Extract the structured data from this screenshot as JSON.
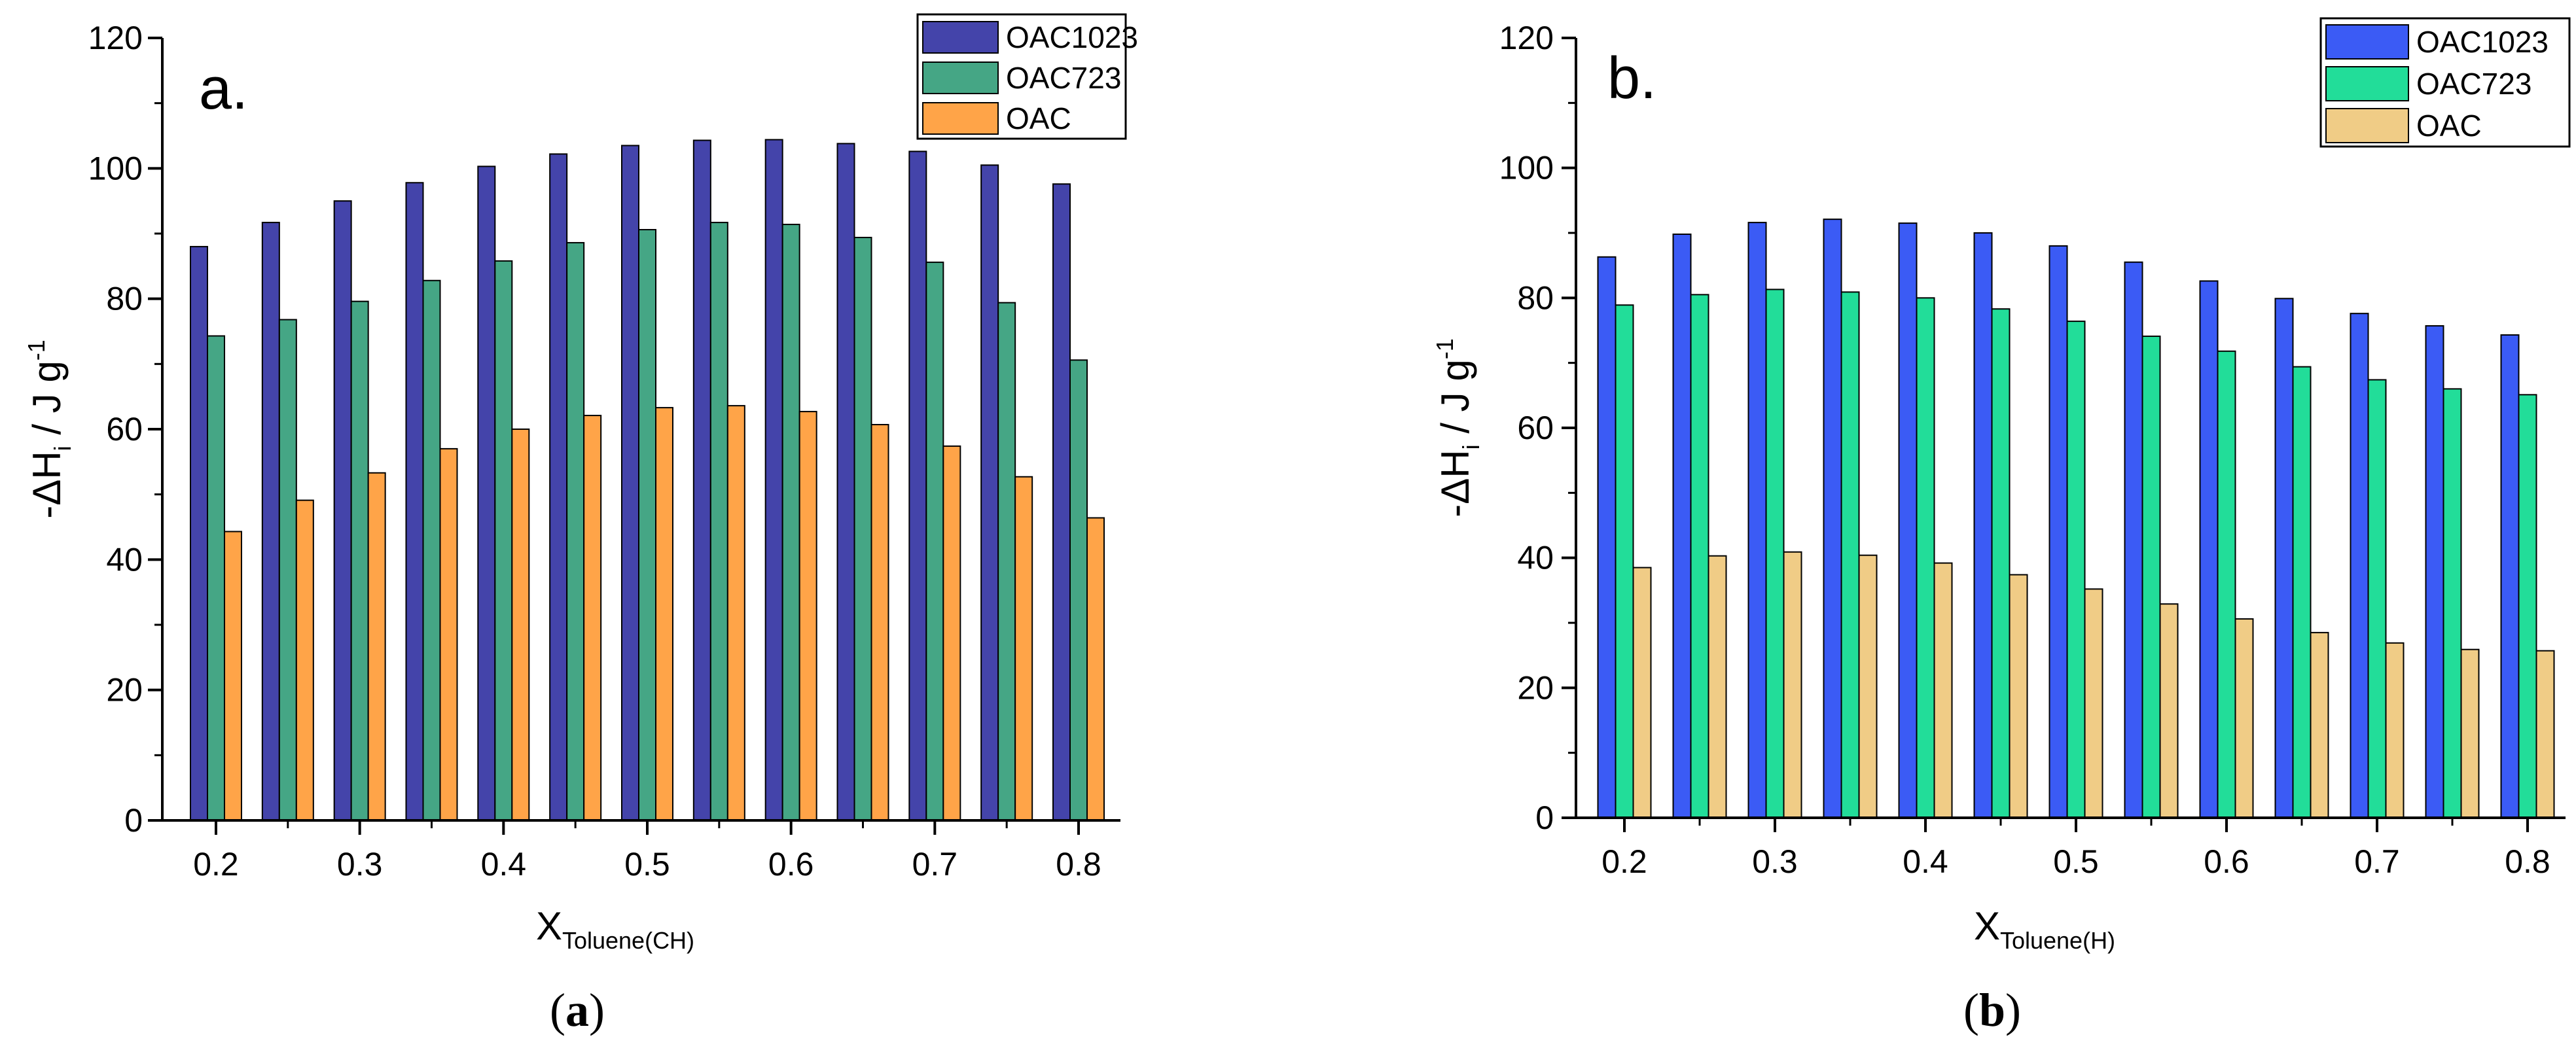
{
  "chart_data": [
    {
      "type": "bar",
      "panel_label": "a.",
      "caption": {
        "open": "(",
        "letter": "a",
        "close": ")"
      },
      "categories": [
        "0.2",
        "0.25",
        "0.3",
        "0.35",
        "0.4",
        "0.45",
        "0.5",
        "0.55",
        "0.6",
        "0.65",
        "0.7",
        "0.75",
        "0.8"
      ],
      "x_ticks": [
        "0.2",
        "0.3",
        "0.4",
        "0.5",
        "0.6",
        "0.7",
        "0.8"
      ],
      "series": [
        {
          "name": "OAC1023",
          "color": "#4444aa",
          "values": [
            88,
            91.7,
            95,
            97.8,
            100.3,
            102.2,
            103.5,
            104.3,
            104.4,
            103.8,
            102.6,
            100.5,
            97.6
          ]
        },
        {
          "name": "OAC723",
          "color": "#45a685",
          "values": [
            74.3,
            76.8,
            79.6,
            82.8,
            85.8,
            88.6,
            90.6,
            91.7,
            91.4,
            89.4,
            85.6,
            79.4,
            70.6
          ]
        },
        {
          "name": "OAC",
          "color": "#ffa448",
          "values": [
            44.3,
            49.1,
            53.3,
            57,
            60,
            62.1,
            63.3,
            63.6,
            62.7,
            60.7,
            57.4,
            52.7,
            46.4
          ]
        }
      ],
      "xlabel": {
        "main": "X",
        "sub": "Toluene(CH)"
      },
      "ylabel": {
        "prefix": "-ΔH",
        "sub": "i",
        "mid": " / J g",
        "sup": "-1"
      },
      "ylim": [
        0,
        120
      ],
      "y_ticks": [
        "0",
        "20",
        "40",
        "60",
        "80",
        "100",
        "120"
      ],
      "legend_position": "top-right"
    },
    {
      "type": "bar",
      "panel_label": "b.",
      "caption": {
        "open": "(",
        "letter": "b",
        "close": ")"
      },
      "categories": [
        "0.2",
        "0.25",
        "0.3",
        "0.35",
        "0.4",
        "0.45",
        "0.5",
        "0.55",
        "0.6",
        "0.65",
        "0.7",
        "0.75",
        "0.8"
      ],
      "x_ticks": [
        "0.2",
        "0.3",
        "0.4",
        "0.5",
        "0.6",
        "0.7",
        "0.8"
      ],
      "series": [
        {
          "name": "OAC1023",
          "color": "#3b5bf5",
          "values": [
            86.3,
            89.8,
            91.6,
            92.1,
            91.5,
            90,
            88,
            85.5,
            82.6,
            79.9,
            77.6,
            75.7,
            74.3
          ]
        },
        {
          "name": "OAC723",
          "color": "#22dd99",
          "values": [
            78.9,
            80.5,
            81.3,
            80.9,
            80,
            78.3,
            76.4,
            74.1,
            71.8,
            69.4,
            67.4,
            66,
            65.1
          ]
        },
        {
          "name": "OAC",
          "color": "#f0cc86",
          "values": [
            38.5,
            40.3,
            40.9,
            40.4,
            39.2,
            37.4,
            35.2,
            32.9,
            30.6,
            28.5,
            26.9,
            25.9,
            25.7
          ]
        }
      ],
      "xlabel": {
        "main": "X",
        "sub": "Toluene(H)"
      },
      "ylabel": {
        "prefix": "-ΔH",
        "sub": "i",
        "mid": " / J g",
        "sup": "-1"
      },
      "ylim": [
        0,
        120
      ],
      "y_ticks": [
        "0",
        "20",
        "40",
        "60",
        "80",
        "100",
        "120"
      ],
      "legend_position": "top-right"
    }
  ]
}
